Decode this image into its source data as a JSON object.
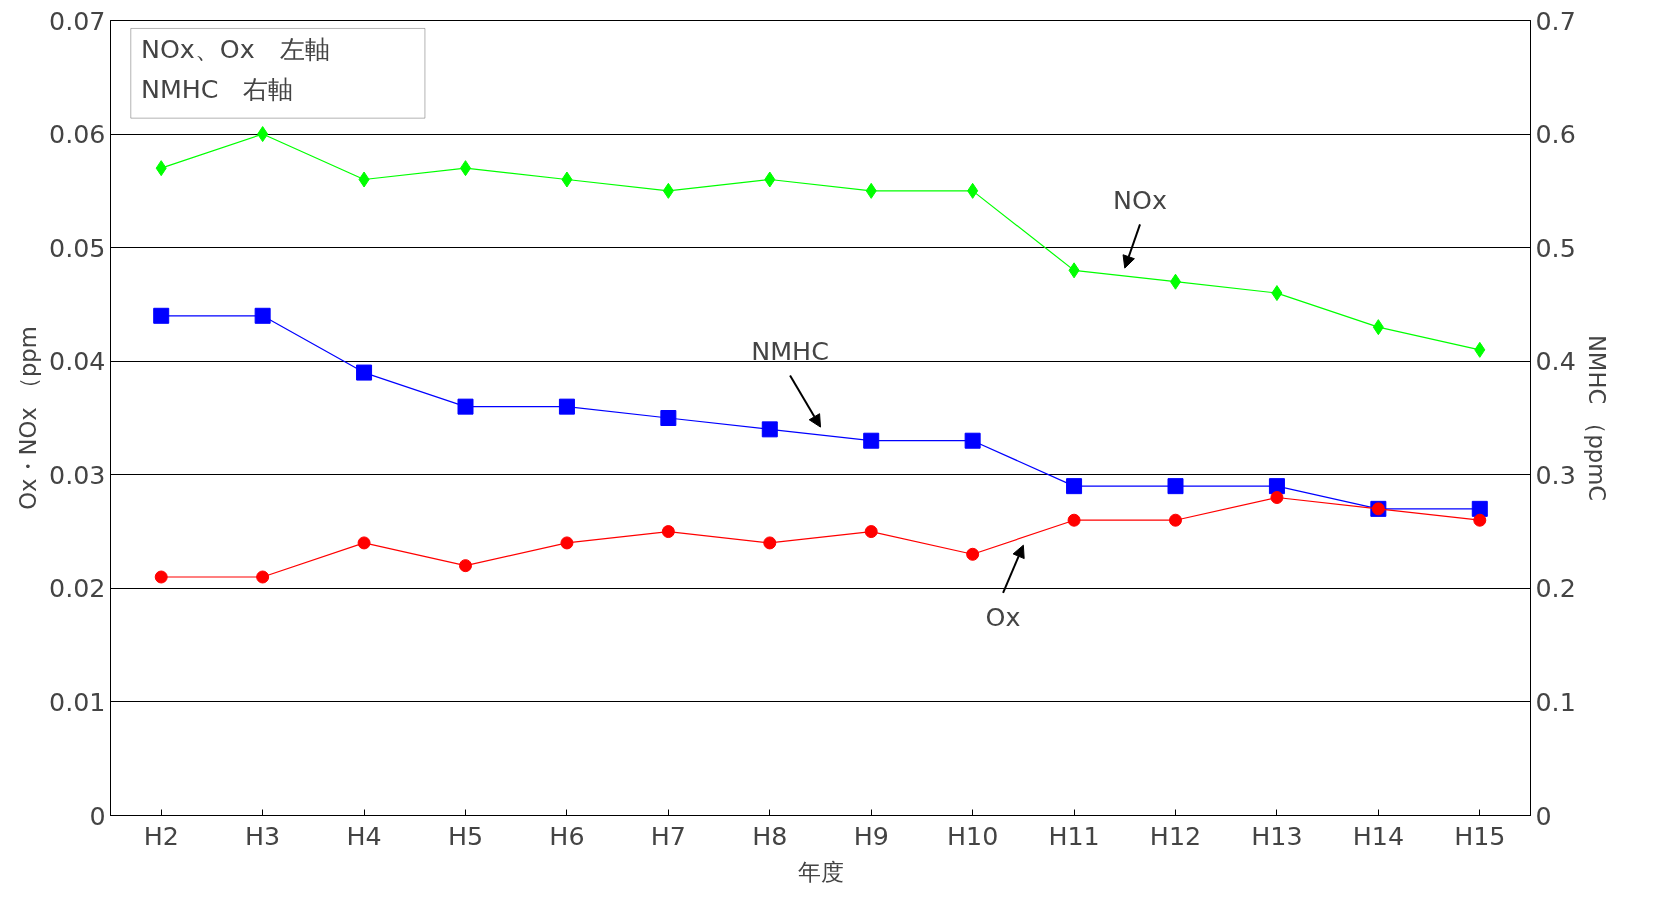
{
  "chart_data": {
    "type": "line",
    "xlabel": "年度",
    "ylabel": "Ox・NOx （ppm",
    "y2label": "NMHC （ppmC",
    "categories": [
      "H2",
      "H3",
      "H4",
      "H5",
      "H6",
      "H7",
      "H8",
      "H9",
      "H10",
      "H11",
      "H12",
      "H13",
      "H14",
      "H15"
    ],
    "series": [
      {
        "name": "NOx",
        "color": "#00ff00",
        "marker": "diamond",
        "values": [
          0.057,
          0.06,
          0.056,
          0.057,
          0.056,
          0.055,
          0.056,
          0.055,
          0.055,
          0.048,
          0.047,
          0.046,
          0.043,
          0.041
        ]
      },
      {
        "name": "NMHC",
        "color": "#0000ff",
        "marker": "square",
        "axis": "y2",
        "values": [
          0.44,
          0.44,
          0.39,
          0.36,
          0.36,
          0.35,
          0.34,
          0.33,
          0.33,
          0.29,
          0.29,
          0.29,
          0.27,
          0.27
        ]
      },
      {
        "name": "Ox",
        "color": "#ff0000",
        "marker": "circle",
        "values": [
          0.021,
          0.021,
          0.024,
          0.022,
          0.024,
          0.025,
          0.024,
          0.025,
          0.023,
          0.026,
          0.026,
          0.028,
          0.027,
          0.026
        ]
      }
    ],
    "annotations": [
      "NOx、Ox　左軸",
      "NMHC　右軸"
    ],
    "ylim": [
      0,
      0.07
    ],
    "yticks": [
      0,
      0.01,
      0.02,
      0.03,
      0.04,
      0.05,
      0.06,
      0.07
    ],
    "y2lim": [
      0,
      0.7
    ],
    "y2ticks": [
      0,
      0.1,
      0.2,
      0.3,
      0.4,
      0.5,
      0.6,
      0.7
    ],
    "grid": "y",
    "legend": false
  }
}
